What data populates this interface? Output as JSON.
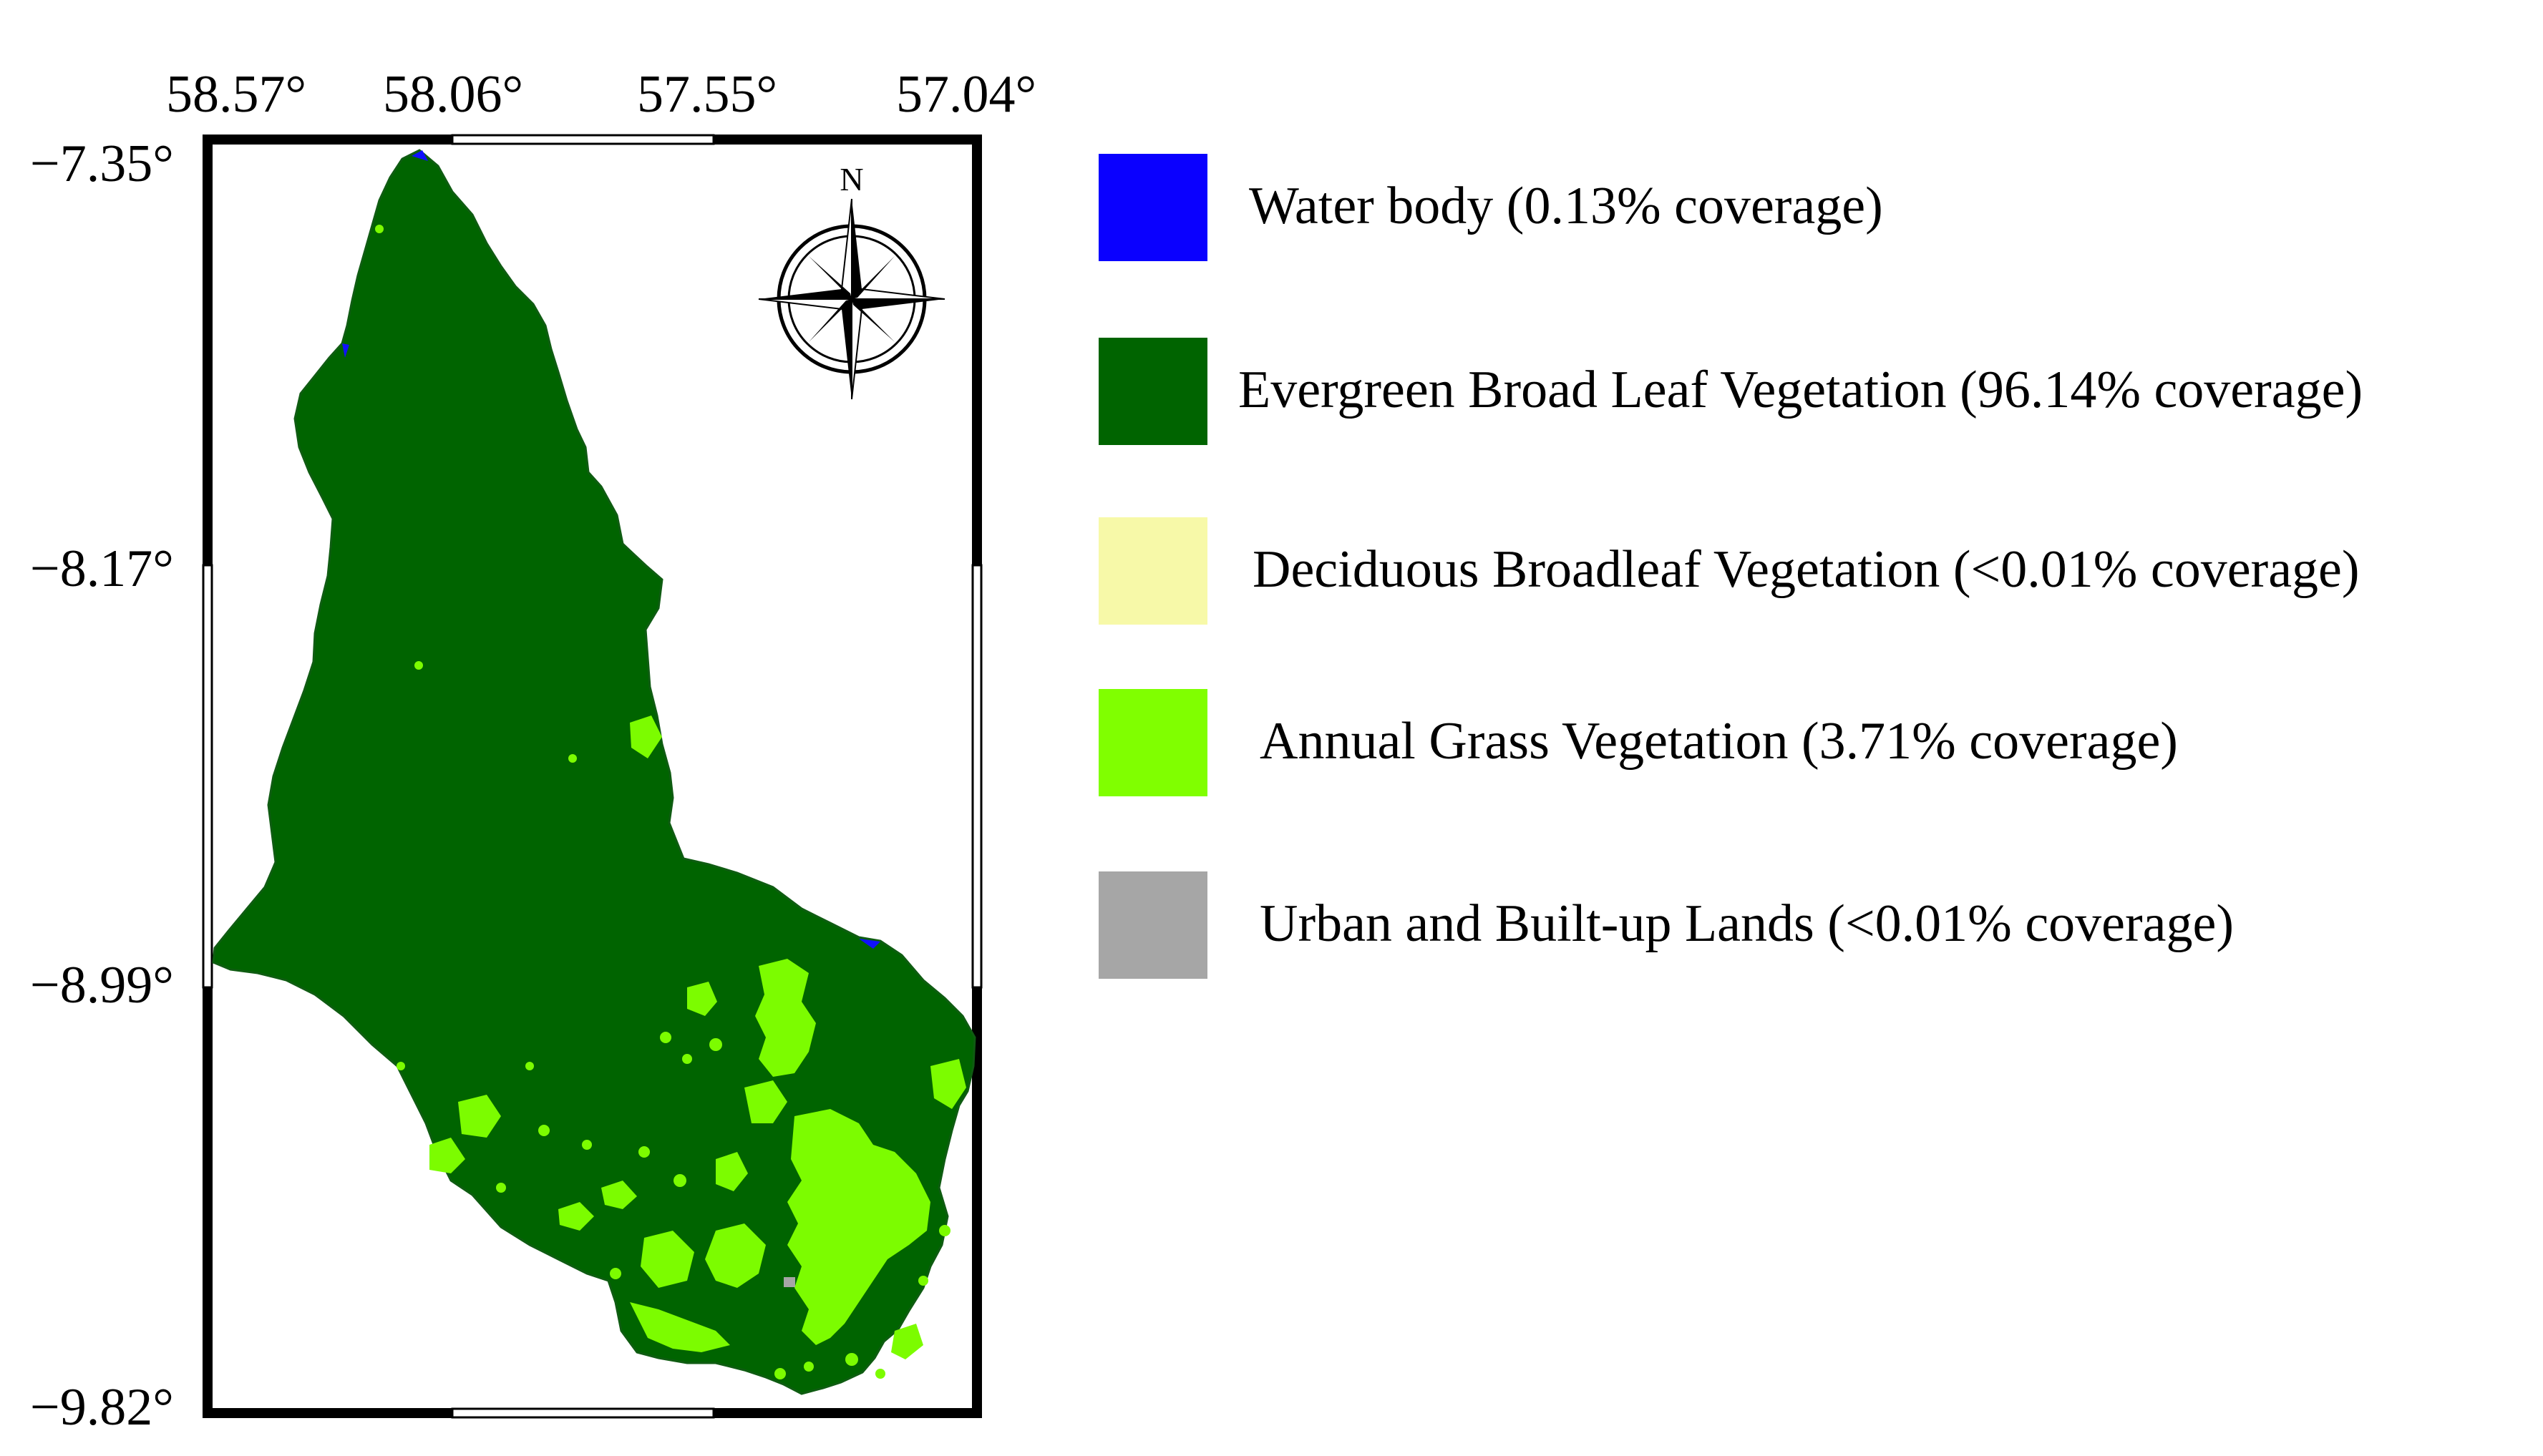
{
  "map": {
    "longitude_labels": [
      "58.57°",
      "58.06°",
      "57.55°",
      "57.04°"
    ],
    "latitude_labels": [
      "−7.35°",
      "−8.17°",
      "−8.99°",
      "−9.82°"
    ],
    "north_arrow_label": "N",
    "landcover_colors": {
      "evergreen": "#006400",
      "grass": "#7cfc00",
      "water": "#1010ff",
      "urban": "#a6a6a6"
    }
  },
  "legend": {
    "items": [
      {
        "label": "Water body (0.13% coverage)",
        "color": "#0a00ff"
      },
      {
        "label": "Evergreen Broad Leaf Vegetation (96.14% coverage)",
        "color": "#006400"
      },
      {
        "label": "Deciduous Broadleaf Vegetation (<0.01% coverage)",
        "color": "#f7f9a8"
      },
      {
        "label": "Annual Grass Vegetation (3.71% coverage)",
        "color": "#80ff00"
      },
      {
        "label": "Urban and Built-up Lands (<0.01% coverage)",
        "color": "#a6a6a6"
      }
    ]
  }
}
